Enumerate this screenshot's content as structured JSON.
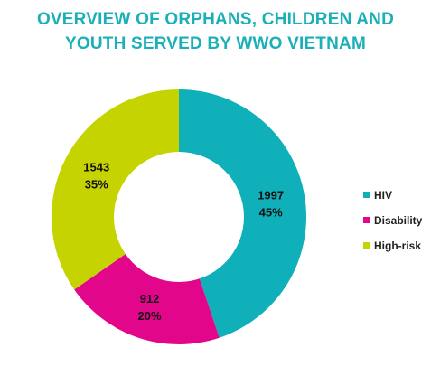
{
  "chart_data": {
    "type": "pie",
    "title_lines": [
      "OVERVIEW OF ORPHANS, CHILDREN AND",
      "YOUTH SERVED BY WWO VIETNAM"
    ],
    "slices": [
      {
        "label": "HIV",
        "value": 1997,
        "percent": "45%",
        "color": "#0fb0b9"
      },
      {
        "label": "Disability",
        "value": 912,
        "percent": "20%",
        "color": "#e2068b"
      },
      {
        "label": "High-risk",
        "value": 1543,
        "percent": "35%",
        "color": "#c5d400"
      }
    ],
    "donut": true,
    "legend_position": "right"
  }
}
